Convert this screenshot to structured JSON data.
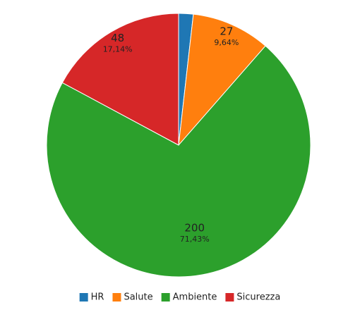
{
  "chart_data": {
    "type": "pie",
    "categories": [
      "HR",
      "Salute",
      "Ambiente",
      "Sicurezza"
    ],
    "values": [
      5,
      27,
      200,
      48
    ],
    "percent_labels": [
      null,
      "9,64%",
      "71,43%",
      "17,14%"
    ],
    "colors": [
      "#1f77b4",
      "#ff7f0e",
      "#2ca02c",
      "#d62728"
    ],
    "legend": "bottom"
  }
}
